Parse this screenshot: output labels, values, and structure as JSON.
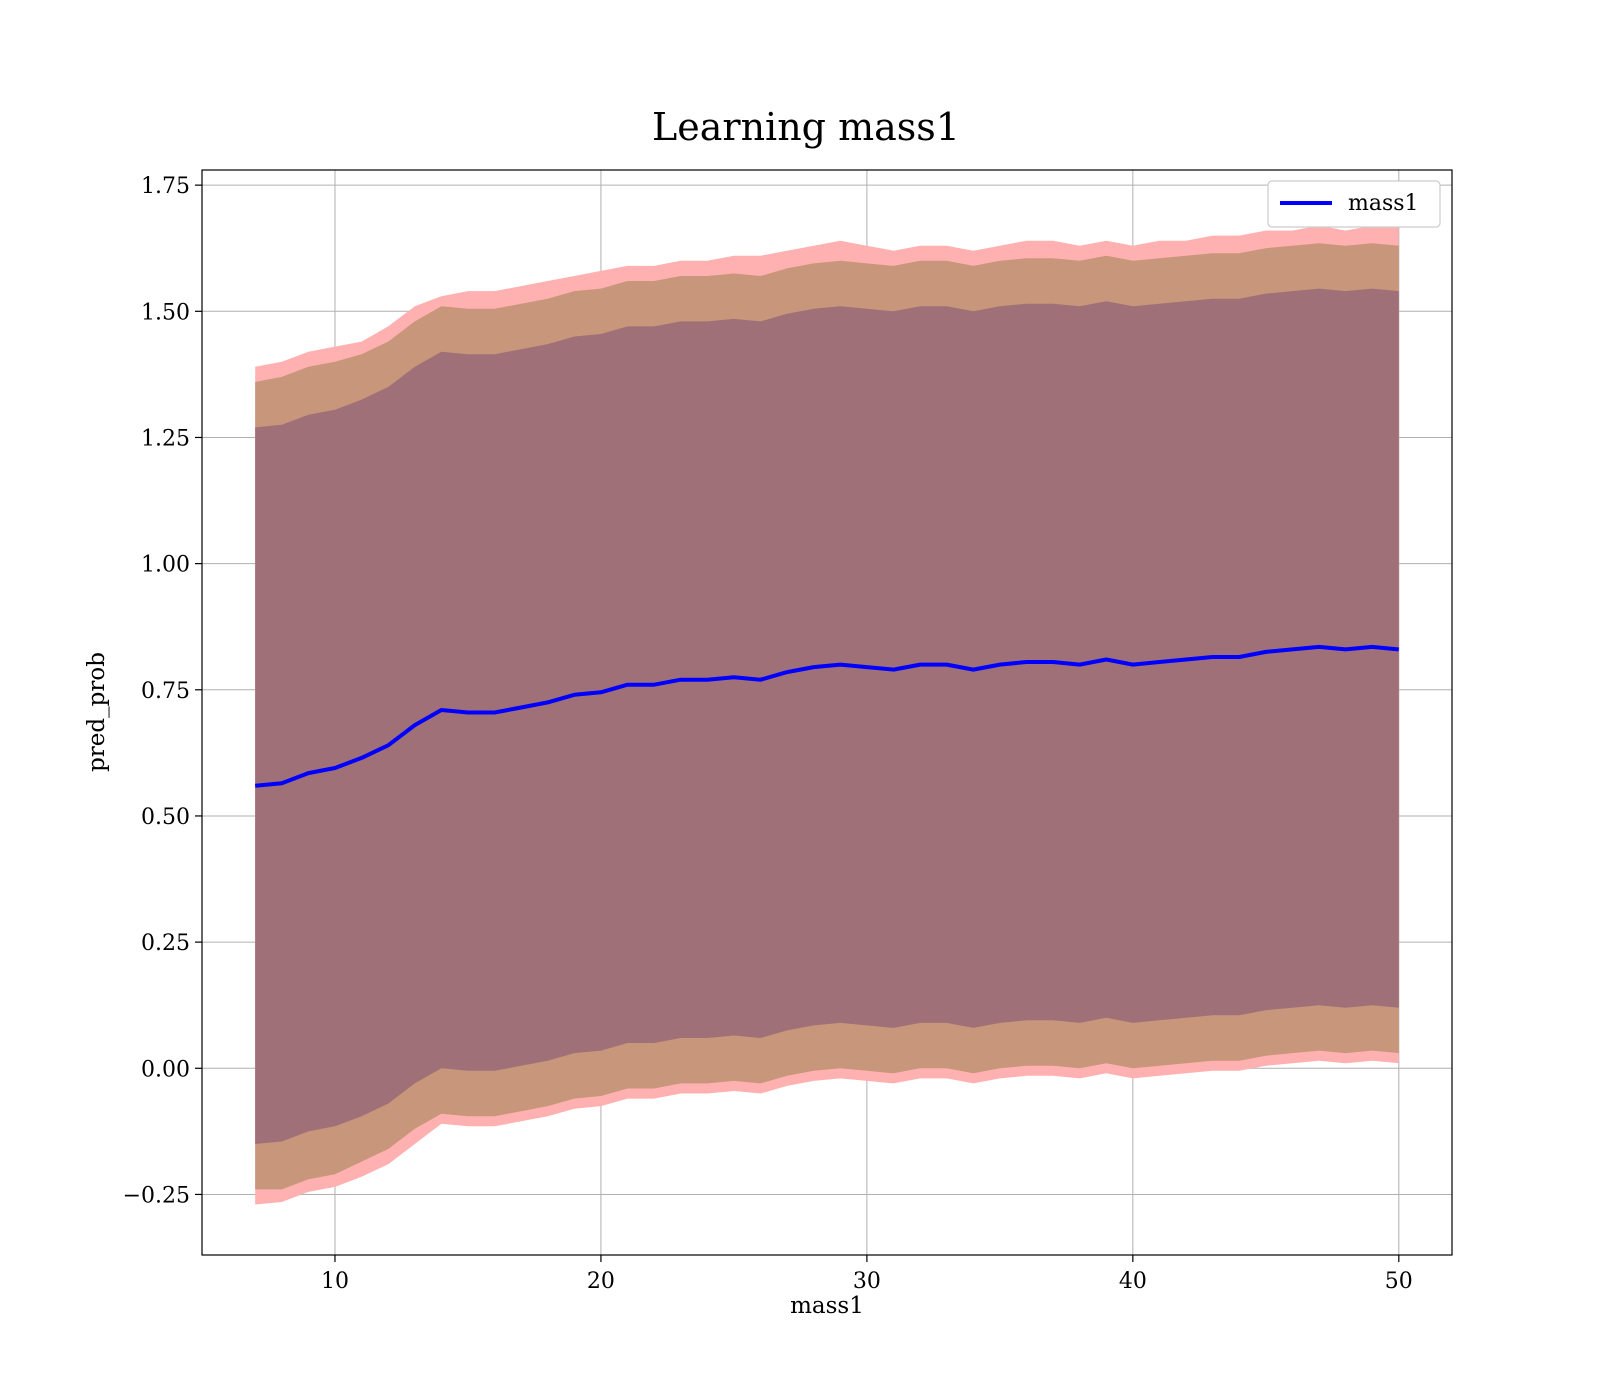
{
  "chart_data": {
    "type": "line",
    "title": "Learning mass1",
    "xlabel": "mass1",
    "ylabel": "pred_prob",
    "xlim": [
      5,
      52
    ],
    "ylim": [
      -0.37,
      1.78
    ],
    "xticks": [
      10,
      20,
      30,
      40,
      50
    ],
    "xtick_labels": [
      "10",
      "20",
      "30",
      "40",
      "50"
    ],
    "yticks": [
      -0.25,
      0.0,
      0.25,
      0.5,
      0.75,
      1.0,
      1.25,
      1.5,
      1.75
    ],
    "ytick_labels": [
      "−0.25",
      "0.00",
      "0.25",
      "0.50",
      "0.75",
      "1.00",
      "1.25",
      "1.50",
      "1.75"
    ],
    "grid": true,
    "legend": {
      "position": "top-right",
      "entries": [
        "mass1"
      ]
    },
    "colors": {
      "line": "#0000ff",
      "outer_band": "#ffb0b0",
      "middle_band": "#c8967a",
      "inner_band": "#a07078",
      "grid": "#b0b0b0"
    },
    "series": [
      {
        "name": "mass1",
        "x": [
          7,
          8,
          9,
          10,
          11,
          12,
          13,
          14,
          15,
          16,
          17,
          18,
          19,
          20,
          21,
          22,
          23,
          24,
          25,
          26,
          27,
          28,
          29,
          30,
          31,
          32,
          33,
          34,
          35,
          36,
          37,
          38,
          39,
          40,
          41,
          42,
          43,
          44,
          45,
          46,
          47,
          48,
          49,
          50
        ],
        "y": [
          0.56,
          0.565,
          0.585,
          0.595,
          0.615,
          0.64,
          0.68,
          0.71,
          0.705,
          0.705,
          0.715,
          0.725,
          0.74,
          0.745,
          0.76,
          0.76,
          0.77,
          0.77,
          0.775,
          0.77,
          0.785,
          0.795,
          0.8,
          0.795,
          0.79,
          0.8,
          0.8,
          0.79,
          0.8,
          0.805,
          0.805,
          0.8,
          0.81,
          0.8,
          0.805,
          0.81,
          0.815,
          0.815,
          0.825,
          0.83,
          0.835,
          0.83,
          0.835,
          0.83
        ]
      }
    ],
    "bands": [
      {
        "level": "outer",
        "upper": [
          1.39,
          1.4,
          1.42,
          1.43,
          1.44,
          1.47,
          1.51,
          1.53,
          1.54,
          1.54,
          1.55,
          1.56,
          1.57,
          1.58,
          1.59,
          1.59,
          1.6,
          1.6,
          1.61,
          1.61,
          1.62,
          1.63,
          1.64,
          1.63,
          1.62,
          1.63,
          1.63,
          1.62,
          1.63,
          1.64,
          1.64,
          1.63,
          1.64,
          1.63,
          1.64,
          1.64,
          1.65,
          1.65,
          1.66,
          1.66,
          1.67,
          1.66,
          1.67,
          1.67
        ],
        "lower": [
          -0.27,
          -0.265,
          -0.245,
          -0.235,
          -0.215,
          -0.19,
          -0.15,
          -0.11,
          -0.115,
          -0.115,
          -0.105,
          -0.095,
          -0.08,
          -0.075,
          -0.06,
          -0.06,
          -0.05,
          -0.05,
          -0.045,
          -0.05,
          -0.035,
          -0.025,
          -0.02,
          -0.025,
          -0.03,
          -0.02,
          -0.02,
          -0.03,
          -0.02,
          -0.015,
          -0.015,
          -0.02,
          -0.01,
          -0.02,
          -0.015,
          -0.01,
          -0.005,
          -0.005,
          0.005,
          0.01,
          0.015,
          0.01,
          0.015,
          0.01
        ]
      },
      {
        "level": "middle",
        "upper": [
          1.36,
          1.37,
          1.39,
          1.4,
          1.415,
          1.44,
          1.48,
          1.51,
          1.505,
          1.505,
          1.515,
          1.525,
          1.54,
          1.545,
          1.56,
          1.56,
          1.57,
          1.57,
          1.575,
          1.57,
          1.585,
          1.595,
          1.6,
          1.595,
          1.59,
          1.6,
          1.6,
          1.59,
          1.6,
          1.605,
          1.605,
          1.6,
          1.61,
          1.6,
          1.605,
          1.61,
          1.615,
          1.615,
          1.625,
          1.63,
          1.635,
          1.63,
          1.635,
          1.63
        ],
        "lower": [
          -0.24,
          -0.24,
          -0.22,
          -0.21,
          -0.185,
          -0.16,
          -0.12,
          -0.09,
          -0.095,
          -0.095,
          -0.085,
          -0.075,
          -0.06,
          -0.055,
          -0.04,
          -0.04,
          -0.03,
          -0.03,
          -0.025,
          -0.03,
          -0.015,
          -0.005,
          0.0,
          -0.005,
          -0.01,
          0.0,
          0.0,
          -0.01,
          0.0,
          0.005,
          0.005,
          0.0,
          0.01,
          0.0,
          0.005,
          0.01,
          0.015,
          0.015,
          0.025,
          0.03,
          0.035,
          0.03,
          0.035,
          0.03
        ]
      },
      {
        "level": "inner",
        "upper": [
          1.27,
          1.275,
          1.295,
          1.305,
          1.325,
          1.35,
          1.39,
          1.42,
          1.415,
          1.415,
          1.425,
          1.435,
          1.45,
          1.455,
          1.47,
          1.47,
          1.48,
          1.48,
          1.485,
          1.48,
          1.495,
          1.505,
          1.51,
          1.505,
          1.5,
          1.51,
          1.51,
          1.5,
          1.51,
          1.515,
          1.515,
          1.51,
          1.52,
          1.51,
          1.515,
          1.52,
          1.525,
          1.525,
          1.535,
          1.54,
          1.545,
          1.54,
          1.545,
          1.54
        ],
        "lower": [
          -0.15,
          -0.145,
          -0.125,
          -0.115,
          -0.095,
          -0.07,
          -0.03,
          0.0,
          -0.005,
          -0.005,
          0.005,
          0.015,
          0.03,
          0.035,
          0.05,
          0.05,
          0.06,
          0.06,
          0.065,
          0.06,
          0.075,
          0.085,
          0.09,
          0.085,
          0.08,
          0.09,
          0.09,
          0.08,
          0.09,
          0.095,
          0.095,
          0.09,
          0.1,
          0.09,
          0.095,
          0.1,
          0.105,
          0.105,
          0.115,
          0.12,
          0.125,
          0.12,
          0.125,
          0.12
        ]
      }
    ]
  }
}
